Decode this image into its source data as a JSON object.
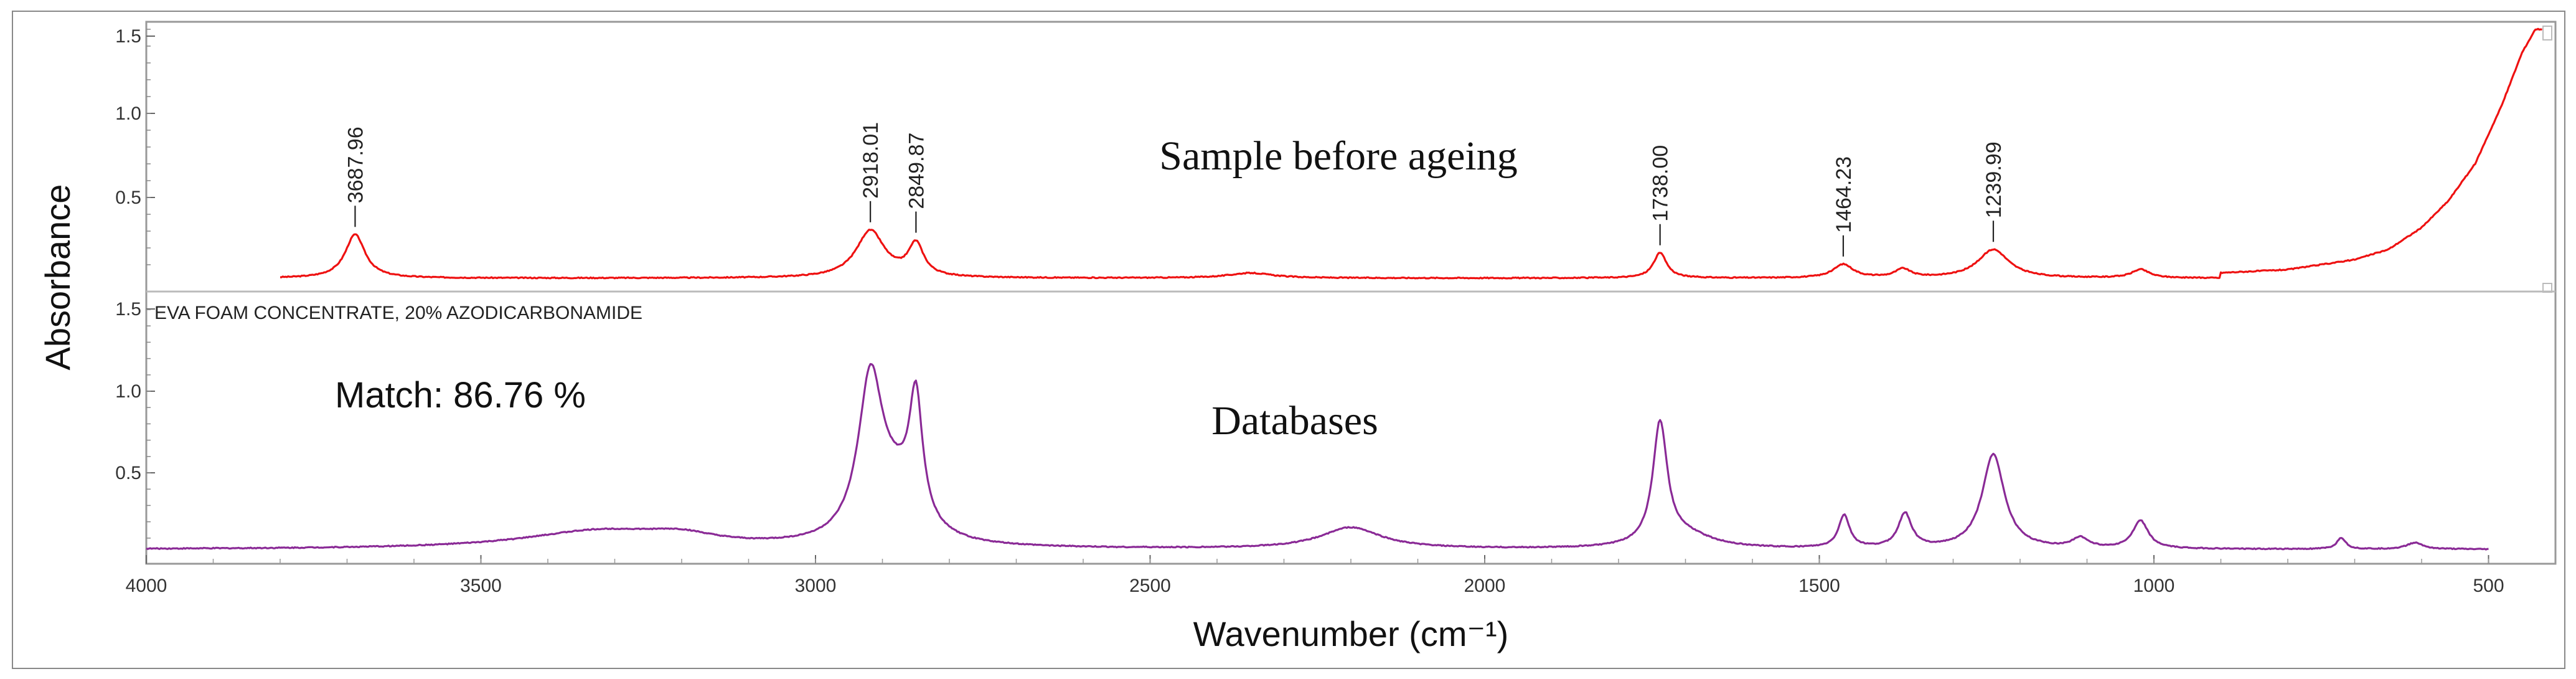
{
  "chart_data": [
    {
      "type": "line",
      "title": "Sample before ageing",
      "xlabel": "Wavenumber (cm⁻¹)",
      "ylabel": "Absorbance",
      "xlim": [
        4000,
        400
      ],
      "ylim": [
        0,
        1.6
      ],
      "yticks": [
        "1.5",
        "1.0",
        "0.5"
      ],
      "color": "#ee1111",
      "baseline": 0.02,
      "peaks": [
        {
          "wavenumber": 3687.96,
          "label": "3687.96",
          "height": 0.26,
          "width": 18
        },
        {
          "wavenumber": 2918.01,
          "label": "2918.01",
          "height": 0.28,
          "width": 26
        },
        {
          "wavenumber": 2849.87,
          "label": "2849.87",
          "height": 0.19,
          "width": 14
        },
        {
          "wavenumber": 2350,
          "label": "",
          "height": 0.03,
          "width": 40
        },
        {
          "wavenumber": 1738.0,
          "label": "1738.00",
          "height": 0.15,
          "width": 12
        },
        {
          "wavenumber": 1464.23,
          "label": "1464.23",
          "height": 0.08,
          "width": 18
        },
        {
          "wavenumber": 1375,
          "label": "",
          "height": 0.05,
          "width": 14
        },
        {
          "wavenumber": 1239.99,
          "label": "1239.99",
          "height": 0.17,
          "width": 28
        },
        {
          "wavenumber": 1020,
          "label": "",
          "height": 0.05,
          "width": 16
        }
      ],
      "rising_edge": [
        {
          "x": 900,
          "y": 0.05
        },
        {
          "x": 800,
          "y": 0.07
        },
        {
          "x": 700,
          "y": 0.13
        },
        {
          "x": 650,
          "y": 0.19
        },
        {
          "x": 600,
          "y": 0.32
        },
        {
          "x": 560,
          "y": 0.48
        },
        {
          "x": 520,
          "y": 0.7
        },
        {
          "x": 480,
          "y": 1.05
        },
        {
          "x": 450,
          "y": 1.36
        },
        {
          "x": 430,
          "y": 1.5
        }
      ]
    },
    {
      "type": "line",
      "title": "Databases",
      "reference_name": "EVA FOAM CONCENTRATE, 20% AZODICARBONAMIDE",
      "match": "Match: 86.76 %",
      "xlabel": "Wavenumber (cm⁻¹)",
      "ylabel": "Absorbance",
      "xlim": [
        4000,
        400
      ],
      "ylim": [
        0,
        1.6
      ],
      "yticks": [
        "1.5",
        "1.0",
        "0.5"
      ],
      "xticks": [
        "4000",
        "3500",
        "3000",
        "2500",
        "2000",
        "1500",
        "1000",
        "500"
      ],
      "color": "#8a2a96",
      "baseline": 0.03,
      "peaks": [
        {
          "wavenumber": 3320,
          "label": "",
          "height": 0.11,
          "width": 140
        },
        {
          "wavenumber": 3200,
          "label": "",
          "height": 0.05,
          "width": 60
        },
        {
          "wavenumber": 2918,
          "label": "",
          "height": 0.94,
          "width": 22
        },
        {
          "wavenumber": 2880,
          "label": "",
          "height": 0.3,
          "width": 40
        },
        {
          "wavenumber": 2850,
          "label": "",
          "height": 0.74,
          "width": 12
        },
        {
          "wavenumber": 2200,
          "label": "",
          "height": 0.13,
          "width": 55
        },
        {
          "wavenumber": 1738,
          "label": "",
          "height": 0.74,
          "width": 13
        },
        {
          "wavenumber": 1700,
          "label": "",
          "height": 0.08,
          "width": 50
        },
        {
          "wavenumber": 1463,
          "label": "",
          "height": 0.2,
          "width": 10
        },
        {
          "wavenumber": 1372,
          "label": "",
          "height": 0.21,
          "width": 12
        },
        {
          "wavenumber": 1240,
          "label": "",
          "height": 0.58,
          "width": 20
        },
        {
          "wavenumber": 1110,
          "label": "",
          "height": 0.06,
          "width": 15
        },
        {
          "wavenumber": 1020,
          "label": "",
          "height": 0.17,
          "width": 14
        },
        {
          "wavenumber": 720,
          "label": "",
          "height": 0.07,
          "width": 8
        },
        {
          "wavenumber": 610,
          "label": "",
          "height": 0.04,
          "width": 15
        }
      ],
      "x_end": 500
    }
  ]
}
